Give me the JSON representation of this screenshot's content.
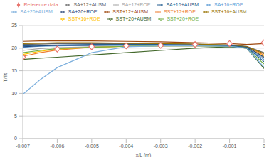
{
  "chart_data": {
    "type": "line",
    "x_label": "x/L (m)",
    "y_label": "T/Tt",
    "x": [
      -0.007,
      -0.0065,
      -0.006,
      -0.005,
      -0.004,
      -0.003,
      -0.002,
      -0.001,
      -0.0005,
      0
    ],
    "xlim": [
      -0.007,
      0
    ],
    "xticks": [
      -0.007,
      -0.006,
      -0.005,
      -0.004,
      -0.003,
      -0.002,
      -0.001,
      0
    ],
    "ylim": [
      0,
      25
    ],
    "yticks": [
      0,
      5,
      10,
      15,
      20,
      25
    ],
    "grid": true,
    "legend": "top",
    "series": [
      {
        "name": "Reference data",
        "color": "#E8736C",
        "marker": "diamond",
        "line_style": "none",
        "values": [
          18.0,
          null,
          19.8,
          20.3,
          20.5,
          20.6,
          20.8,
          21.0,
          null,
          21.2
        ]
      },
      {
        "name": "SST+12+ROE",
        "color": "#ED7D31",
        "values": [
          18.2,
          19.0,
          19.6,
          20.2,
          20.4,
          20.5,
          20.6,
          20.6,
          20.3,
          18.5
        ]
      },
      {
        "name": "SA+12+ROE",
        "color": "#A5A5A5",
        "values": [
          19.5,
          19.9,
          20.1,
          20.3,
          20.4,
          20.5,
          20.5,
          20.4,
          20.0,
          17.8
        ]
      },
      {
        "name": "SST+16+ROE",
        "color": "#FFC000",
        "values": [
          18.6,
          19.3,
          19.8,
          20.2,
          20.4,
          20.5,
          20.5,
          20.5,
          20.2,
          18.2
        ]
      },
      {
        "name": "SA+16+ROE",
        "color": "#5B9BD5",
        "values": [
          20.2,
          20.4,
          20.5,
          20.6,
          20.6,
          20.6,
          20.6,
          20.5,
          20.1,
          17.5
        ]
      },
      {
        "name": "SST+20+ROE",
        "color": "#70AD47",
        "values": [
          19.0,
          19.5,
          19.9,
          20.2,
          20.4,
          20.5,
          20.5,
          20.4,
          20.0,
          16.5
        ]
      },
      {
        "name": "SA+20+ROE",
        "color": "#264478",
        "values": [
          20.3,
          20.5,
          20.6,
          20.6,
          20.7,
          20.7,
          20.7,
          20.6,
          20.3,
          18.0
        ]
      },
      {
        "name": "SST+12+AUSM",
        "color": "#9E480E",
        "values": [
          21.5,
          21.6,
          21.6,
          21.6,
          21.5,
          21.4,
          21.2,
          21.0,
          20.8,
          21.0
        ]
      },
      {
        "name": "SA+12+AUSM",
        "color": "#636363",
        "values": [
          20.8,
          20.9,
          21.0,
          21.0,
          21.0,
          21.0,
          20.9,
          20.7,
          20.4,
          19.0
        ]
      },
      {
        "name": "SST+16+AUSM",
        "color": "#997300",
        "values": [
          21.0,
          21.1,
          21.2,
          21.2,
          21.1,
          21.0,
          20.9,
          20.7,
          20.3,
          18.8
        ]
      },
      {
        "name": "SA+16+AUSM",
        "color": "#255E91",
        "values": [
          20.5,
          20.6,
          20.7,
          20.8,
          20.8,
          20.8,
          20.7,
          20.6,
          20.2,
          17.0
        ]
      },
      {
        "name": "SST+20+AUSM",
        "color": "#43682B",
        "values": [
          17.5,
          17.8,
          18.0,
          18.5,
          19.0,
          19.5,
          20.0,
          20.3,
          20.0,
          15.5
        ]
      },
      {
        "name": "SA+20+AUSM",
        "color": "#7CAFDD",
        "values": [
          9.8,
          13.0,
          15.7,
          19.0,
          20.3,
          20.5,
          20.5,
          20.4,
          20.0,
          15.8
        ]
      }
    ]
  }
}
